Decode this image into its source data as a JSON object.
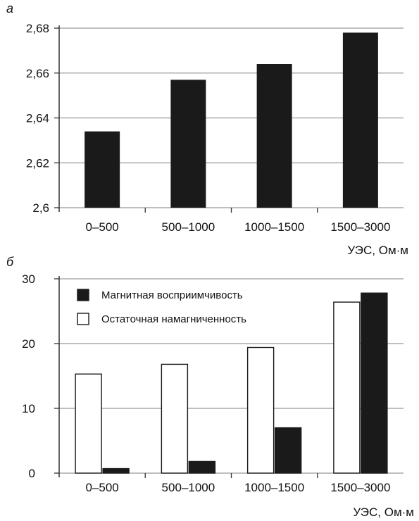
{
  "chart_data": [
    {
      "panel_label": "а",
      "type": "bar",
      "categories": [
        "0–500",
        "500–1000",
        "1000–1500",
        "1500–3000"
      ],
      "values": [
        2.634,
        2.657,
        2.664,
        2.678
      ],
      "xlabel": "УЭС, Ом·м",
      "ylim": [
        2.6,
        2.68
      ],
      "yticks": [
        "2,6",
        "2,62",
        "2,64",
        "2,66",
        "2,68"
      ],
      "grid": "horizontal",
      "colors": {
        "bar": "#1a1a1a",
        "grid": "#999999"
      }
    },
    {
      "panel_label": "б",
      "type": "bar",
      "categories": [
        "0–500",
        "500–1000",
        "1000–1500",
        "1500–3000"
      ],
      "series": [
        {
          "name": "Остаточная намагниченность",
          "values": [
            15.3,
            16.8,
            19.4,
            26.4
          ],
          "color": "#ffffff"
        },
        {
          "name": "Магнитная восприимчивость",
          "values": [
            0.7,
            1.8,
            7.0,
            27.8
          ],
          "color": "#1a1a1a"
        }
      ],
      "legend_order": [
        "Магнитная восприимчивость",
        "Остаточная намагниченность"
      ],
      "legend_position": "top-left",
      "xlabel": "УЭС, Ом·м",
      "ylim": [
        0,
        30
      ],
      "yticks": [
        "0",
        "10",
        "20",
        "30"
      ],
      "grid": "horizontal",
      "colors": {
        "grid": "#999999"
      }
    }
  ]
}
